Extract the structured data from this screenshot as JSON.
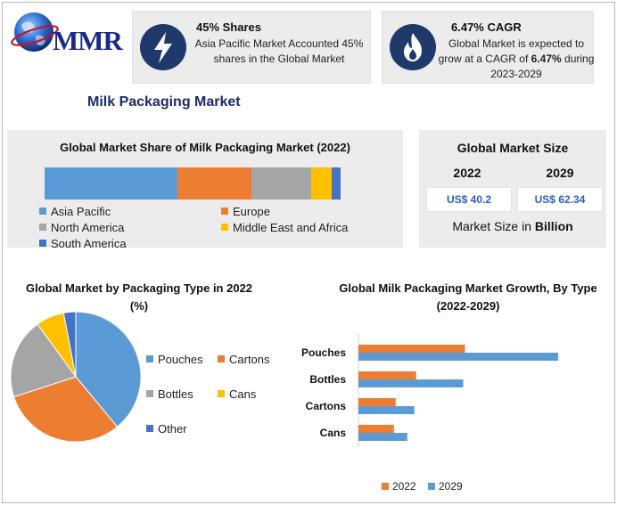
{
  "brand": {
    "logo_text": "MMR"
  },
  "stats": [
    {
      "title": "45% Shares",
      "body": "Asia Pacific Market Accounted 45% shares in the Global Market",
      "icon": "lightning-icon"
    },
    {
      "title": "6.47% CAGR",
      "body_pre": "Global Market is expected to grow at a CAGR of ",
      "body_bold": "6.47%",
      "body_post": " during 2023-2029",
      "icon": "flame-icon"
    }
  ],
  "page_title": "Milk Packaging Market",
  "market_size": {
    "title": "Global Market Size",
    "years": [
      "2022",
      "2029"
    ],
    "values": [
      "US$ 40.2",
      "US$ 62.34"
    ],
    "unit_pre": "Market Size in ",
    "unit_bold": "Billion"
  },
  "colors": {
    "blue": "#5b9bd5",
    "orange": "#ed7d31",
    "gray": "#a5a5a5",
    "yellow": "#ffc000",
    "dark_blue": "#4472c4",
    "title_navy": "#1b2a6b",
    "logo_navy": "#1b2a88",
    "icon_navy": "#1f3a6a"
  },
  "chart_data": [
    {
      "type": "bar",
      "orientation": "horizontal-stacked",
      "title": "Global Market Share of Milk Packaging Market (2022)",
      "categories": [
        "Global Market Share of Milk Packaging Market (2022)"
      ],
      "series": [
        {
          "name": "Asia Pacific",
          "values": [
            45
          ],
          "color": "#5b9bd5"
        },
        {
          "name": "Europe",
          "values": [
            25
          ],
          "color": "#ed7d31"
        },
        {
          "name": "North America",
          "values": [
            20
          ],
          "color": "#a5a5a5"
        },
        {
          "name": "Middle East and Africa",
          "values": [
            7
          ],
          "color": "#ffc000"
        },
        {
          "name": "South America",
          "values": [
            3
          ],
          "color": "#4472c4"
        }
      ],
      "legend_position": "bottom",
      "xlim": [
        0,
        100
      ]
    },
    {
      "type": "pie",
      "title": "Global Market by Packaging Type in 2022 (%)",
      "slices": [
        {
          "name": "Pouches",
          "value": 39,
          "color": "#5b9bd5"
        },
        {
          "name": "Cartons",
          "value": 31,
          "color": "#ed7d31"
        },
        {
          "name": "Bottles",
          "value": 20,
          "color": "#a5a5a5"
        },
        {
          "name": "Cans",
          "value": 7,
          "color": "#ffc000"
        },
        {
          "name": "Other",
          "value": 3,
          "color": "#4472c4"
        }
      ],
      "legend_position": "right"
    },
    {
      "type": "bar",
      "orientation": "horizontal",
      "title": "Global Milk Packaging Market Growth, By Type (2022-2029)",
      "categories": [
        "Pouches",
        "Bottles",
        "Cartons",
        "Cans"
      ],
      "series": [
        {
          "name": "2022",
          "values": [
            120,
            65,
            42,
            40
          ],
          "color": "#ed7d31"
        },
        {
          "name": "2029",
          "values": [
            225,
            118,
            63,
            55
          ],
          "color": "#5b9bd5"
        }
      ],
      "xlim": [
        0,
        260
      ],
      "grid": false,
      "legend_position": "bottom"
    }
  ]
}
